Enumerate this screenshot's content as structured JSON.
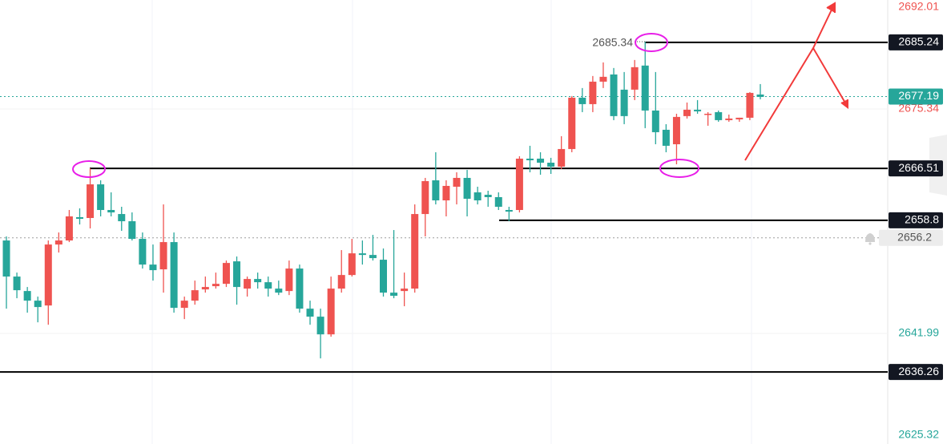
{
  "chart_data": {
    "type": "candlestick",
    "up_color": "#ef5350",
    "down_color": "#26a69a",
    "ylim": [
      2625.32,
      2692.01
    ],
    "yticks": [
      2692.01,
      2675.34,
      2641.99,
      2625.32
    ],
    "ytick_colors": [
      "#ef5350",
      "#ef5350",
      "#26a69a",
      "#26a69a"
    ],
    "grid": true,
    "ohlc": {
      "open": [
        2655.8,
        2650.44,
        2648.29,
        2646.86,
        2646.14,
        2655.2,
        2655.8,
        2659.26,
        2659.14,
        2664.14,
        2660.33,
        2659.73,
        2658.66,
        2656.04,
        2652.22,
        2651.51,
        2655.56,
        2645.79,
        2646.86,
        2648.53,
        2649.01,
        2649.36,
        2652.7,
        2648.65,
        2650.08,
        2649.6,
        2648.65,
        2648.29,
        2651.63,
        2645.67,
        2644.48,
        2641.85,
        2648.65,
        2650.67,
        2653.89,
        2653.65,
        2652.94,
        2648.05,
        2648.29,
        2648.65,
        2659.73,
        2664.74,
        2661.76,
        2663.79,
        2665.1,
        2662.95,
        2662.59,
        2662.24,
        2660.33,
        2660.33,
        2667.96,
        2667.96,
        2667.36,
        2666.77,
        2669.39,
        2677.02,
        2676.06,
        2679.4,
        2680.47,
        2678.21,
        2678.21,
        2681.79,
        2675.11,
        2672.25,
        2670.1,
        2674.28,
        2675.23,
        2674.51,
        2674.87,
        2673.68,
        2673.8,
        2674.04,
        2677.49
      ],
      "high": [
        2656.4,
        2651.03,
        2648.89,
        2647.46,
        2655.8,
        2656.99,
        2660.33,
        2660.57,
        2666.53,
        2664.74,
        2662.95,
        2660.81,
        2659.97,
        2656.99,
        2655.2,
        2661.16,
        2656.99,
        2647.46,
        2649.84,
        2650.44,
        2651.03,
        2652.82,
        2653.42,
        2650.44,
        2651.03,
        2650.44,
        2649.84,
        2652.82,
        2652.22,
        2646.86,
        2645.67,
        2650.44,
        2654.37,
        2656.04,
        2655.8,
        2656.63,
        2654.61,
        2657.35,
        2651.03,
        2661.16,
        2665.1,
        2668.91,
        2664.74,
        2665.93,
        2666.29,
        2663.79,
        2663.19,
        2662.95,
        2660.81,
        2668.32,
        2669.87,
        2668.91,
        2668.08,
        2671.3,
        2677.26,
        2678.45,
        2680.24,
        2682.26,
        2681.43,
        2680.83,
        2682.62,
        2685.34,
        2680.83,
        2673.08,
        2674.63,
        2676.3,
        2676.66,
        2674.87,
        2675.11,
        2674.51,
        2674.04,
        2677.85,
        2679.04
      ],
      "low": [
        2645.67,
        2647.22,
        2645.07,
        2643.64,
        2643.28,
        2654.01,
        2655.56,
        2658.18,
        2657.59,
        2659.38,
        2659.38,
        2657.23,
        2655.8,
        2651.63,
        2649.84,
        2648.05,
        2645.07,
        2644.12,
        2646.26,
        2648.05,
        2648.65,
        2648.89,
        2646.26,
        2647.46,
        2648.65,
        2647.46,
        2647.69,
        2647.69,
        2645.07,
        2643.28,
        2638.28,
        2641.5,
        2648.05,
        2650.44,
        2652.22,
        2652.82,
        2647.46,
        2647.22,
        2646.03,
        2648.05,
        2656.4,
        2661.16,
        2659.38,
        2661.16,
        2659.38,
        2661.16,
        2660.81,
        2660.33,
        2658.66,
        2659.97,
        2665.93,
        2665.57,
        2665.69,
        2666.41,
        2668.91,
        2674.87,
        2674.87,
        2678.45,
        2673.68,
        2673.08,
        2676.66,
        2672.49,
        2670.1,
        2668.91,
        2667.12,
        2673.92,
        2674.63,
        2672.85,
        2673.44,
        2673.44,
        2673.44,
        2673.68,
        2676.78
      ],
      "close": [
        2650.44,
        2648.41,
        2646.86,
        2645.91,
        2655.2,
        2655.8,
        2659.38,
        2659.02,
        2664.14,
        2660.33,
        2659.97,
        2658.66,
        2656.04,
        2652.22,
        2651.39,
        2655.56,
        2645.79,
        2646.86,
        2648.41,
        2648.89,
        2649.36,
        2652.46,
        2648.89,
        2650.08,
        2649.6,
        2648.65,
        2648.05,
        2651.63,
        2645.67,
        2644.48,
        2641.85,
        2648.65,
        2650.67,
        2653.89,
        2653.65,
        2653.18,
        2648.05,
        2647.58,
        2648.65,
        2659.73,
        2664.62,
        2661.76,
        2663.91,
        2665.1,
        2662.0,
        2661.76,
        2662.24,
        2660.81,
        2660.09,
        2667.96,
        2667.72,
        2667.36,
        2666.77,
        2669.39,
        2677.02,
        2676.06,
        2679.4,
        2680.12,
        2674.28,
        2674.28,
        2681.55,
        2675.11,
        2671.89,
        2669.87,
        2674.16,
        2675.23,
        2674.99,
        2674.63,
        2673.68,
        2673.92,
        2674.04,
        2677.73,
        2677.14
      ]
    },
    "high_marker": 2685.34,
    "horizontal_lines": [
      2685.24,
      2666.51,
      2658.8,
      2636.26
    ],
    "horizontal_line_color": "#000000",
    "current_price": 2677.19,
    "current_price_color": "#26a69a",
    "alert_price": 2656.2,
    "alert_color": "#9e9e9e"
  }
}
